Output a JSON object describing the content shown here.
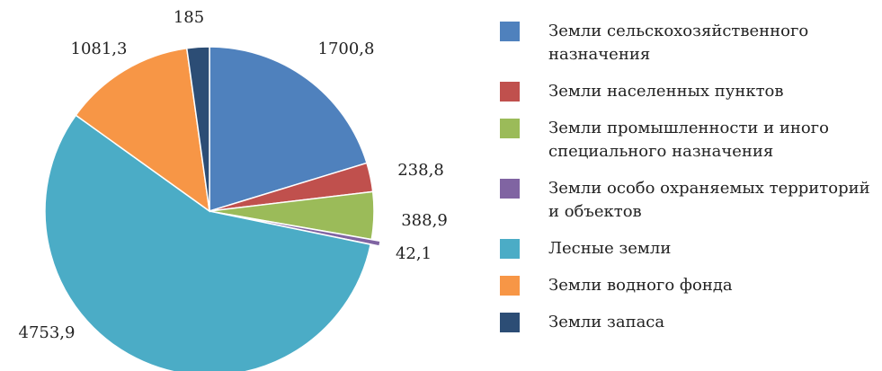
{
  "chart_data": {
    "type": "pie",
    "categories": [
      "Земли сельскохозяйственного назначения",
      "Земли населенных пунктов",
      "Земли промышленности и иного специального назначения",
      "Земли особо охраняемых территорий и объектов",
      "Лесные земли",
      "Земли водного фонда",
      "Земли запаса"
    ],
    "values": [
      1700.8,
      238.8,
      388.9,
      42.1,
      4753.9,
      1081.3,
      185
    ],
    "value_labels": [
      "1700,8",
      "238,8",
      "388,9",
      "42,1",
      "4753,9",
      "1081,3",
      "185"
    ],
    "colors": [
      "#4f81bd",
      "#c0504d",
      "#9bbb59",
      "#8064a2",
      "#4bacc6",
      "#f79646",
      "#2c4d75"
    ]
  }
}
